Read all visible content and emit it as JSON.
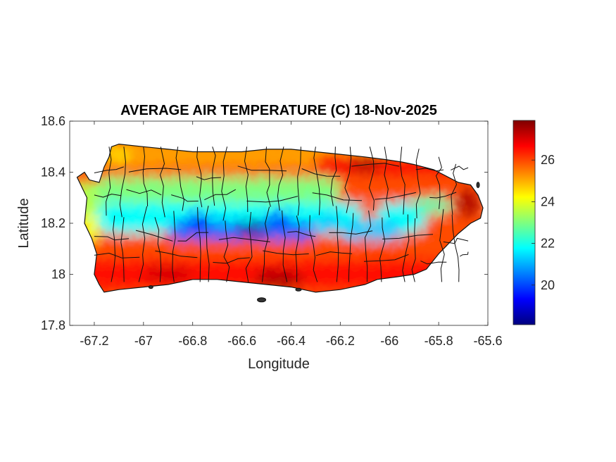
{
  "map": {
    "title": "AVERAGE AIR TEMPERATURE (C) 18-Nov-2025",
    "xlabel": "Longitude",
    "ylabel": "Latitude",
    "xlim": [
      -67.3,
      -65.6
    ],
    "ylim": [
      17.8,
      18.6
    ],
    "x_ticks": [
      {
        "value": -67.2,
        "label": "-67.2"
      },
      {
        "value": -67.0,
        "label": "-67"
      },
      {
        "value": -66.8,
        "label": "-66.8"
      },
      {
        "value": -66.6,
        "label": "-66.6"
      },
      {
        "value": -66.4,
        "label": "-66.4"
      },
      {
        "value": -66.2,
        "label": "-66.2"
      },
      {
        "value": -66.0,
        "label": "-66"
      },
      {
        "value": -65.8,
        "label": "-65.8"
      },
      {
        "value": -65.6,
        "label": "-65.6"
      }
    ],
    "y_ticks": [
      {
        "value": 17.8,
        "label": "17.8"
      },
      {
        "value": 18.0,
        "label": "18"
      },
      {
        "value": 18.2,
        "label": "18.2"
      },
      {
        "value": 18.4,
        "label": "18.4"
      },
      {
        "value": 18.6,
        "label": "18.6"
      }
    ]
  },
  "colorbar": {
    "colormap": "jet",
    "range": [
      18.1,
      27.9
    ],
    "ticks": [
      {
        "value": 20,
        "label": "20"
      },
      {
        "value": 22,
        "label": "22"
      },
      {
        "value": 24,
        "label": "24"
      },
      {
        "value": 26,
        "label": "26"
      }
    ],
    "colors": [
      "#00007f",
      "#0000ff",
      "#007fff",
      "#00ffff",
      "#7fff7f",
      "#ffff00",
      "#ff7f00",
      "#ff0000",
      "#7f0000"
    ]
  },
  "island": {
    "outline": [
      [
        -67.27,
        18.38
      ],
      [
        -67.24,
        18.4
      ],
      [
        -67.22,
        18.37
      ],
      [
        -67.18,
        18.36
      ],
      [
        -67.16,
        18.42
      ],
      [
        -67.14,
        18.46
      ],
      [
        -67.13,
        18.5
      ],
      [
        -67.1,
        18.51
      ],
      [
        -67.0,
        18.5
      ],
      [
        -66.9,
        18.49
      ],
      [
        -66.8,
        18.48
      ],
      [
        -66.7,
        18.48
      ],
      [
        -66.6,
        18.48
      ],
      [
        -66.5,
        18.49
      ],
      [
        -66.4,
        18.49
      ],
      [
        -66.3,
        18.48
      ],
      [
        -66.2,
        18.47
      ],
      [
        -66.1,
        18.46
      ],
      [
        -66.02,
        18.45
      ],
      [
        -65.95,
        18.44
      ],
      [
        -65.9,
        18.43
      ],
      [
        -65.82,
        18.41
      ],
      [
        -65.76,
        18.38
      ],
      [
        -65.72,
        18.36
      ],
      [
        -65.67,
        18.35
      ],
      [
        -65.64,
        18.31
      ],
      [
        -65.62,
        18.26
      ],
      [
        -65.63,
        18.22
      ],
      [
        -65.67,
        18.2
      ],
      [
        -65.72,
        18.16
      ],
      [
        -65.76,
        18.12
      ],
      [
        -65.8,
        18.08
      ],
      [
        -65.85,
        18.02
      ],
      [
        -65.9,
        18.0
      ],
      [
        -65.97,
        17.99
      ],
      [
        -66.05,
        17.98
      ],
      [
        -66.1,
        17.96
      ],
      [
        -66.2,
        17.94
      ],
      [
        -66.3,
        17.93
      ],
      [
        -66.4,
        17.95
      ],
      [
        -66.5,
        17.96
      ],
      [
        -66.6,
        17.97
      ],
      [
        -66.7,
        17.98
      ],
      [
        -66.8,
        17.98
      ],
      [
        -66.9,
        17.96
      ],
      [
        -67.0,
        17.95
      ],
      [
        -67.1,
        17.94
      ],
      [
        -67.16,
        17.93
      ],
      [
        -67.18,
        17.96
      ],
      [
        -67.2,
        18.0
      ],
      [
        -67.19,
        18.08
      ],
      [
        -67.21,
        18.14
      ],
      [
        -67.24,
        18.2
      ],
      [
        -67.23,
        18.3
      ],
      [
        -67.27,
        18.38
      ]
    ]
  }
}
